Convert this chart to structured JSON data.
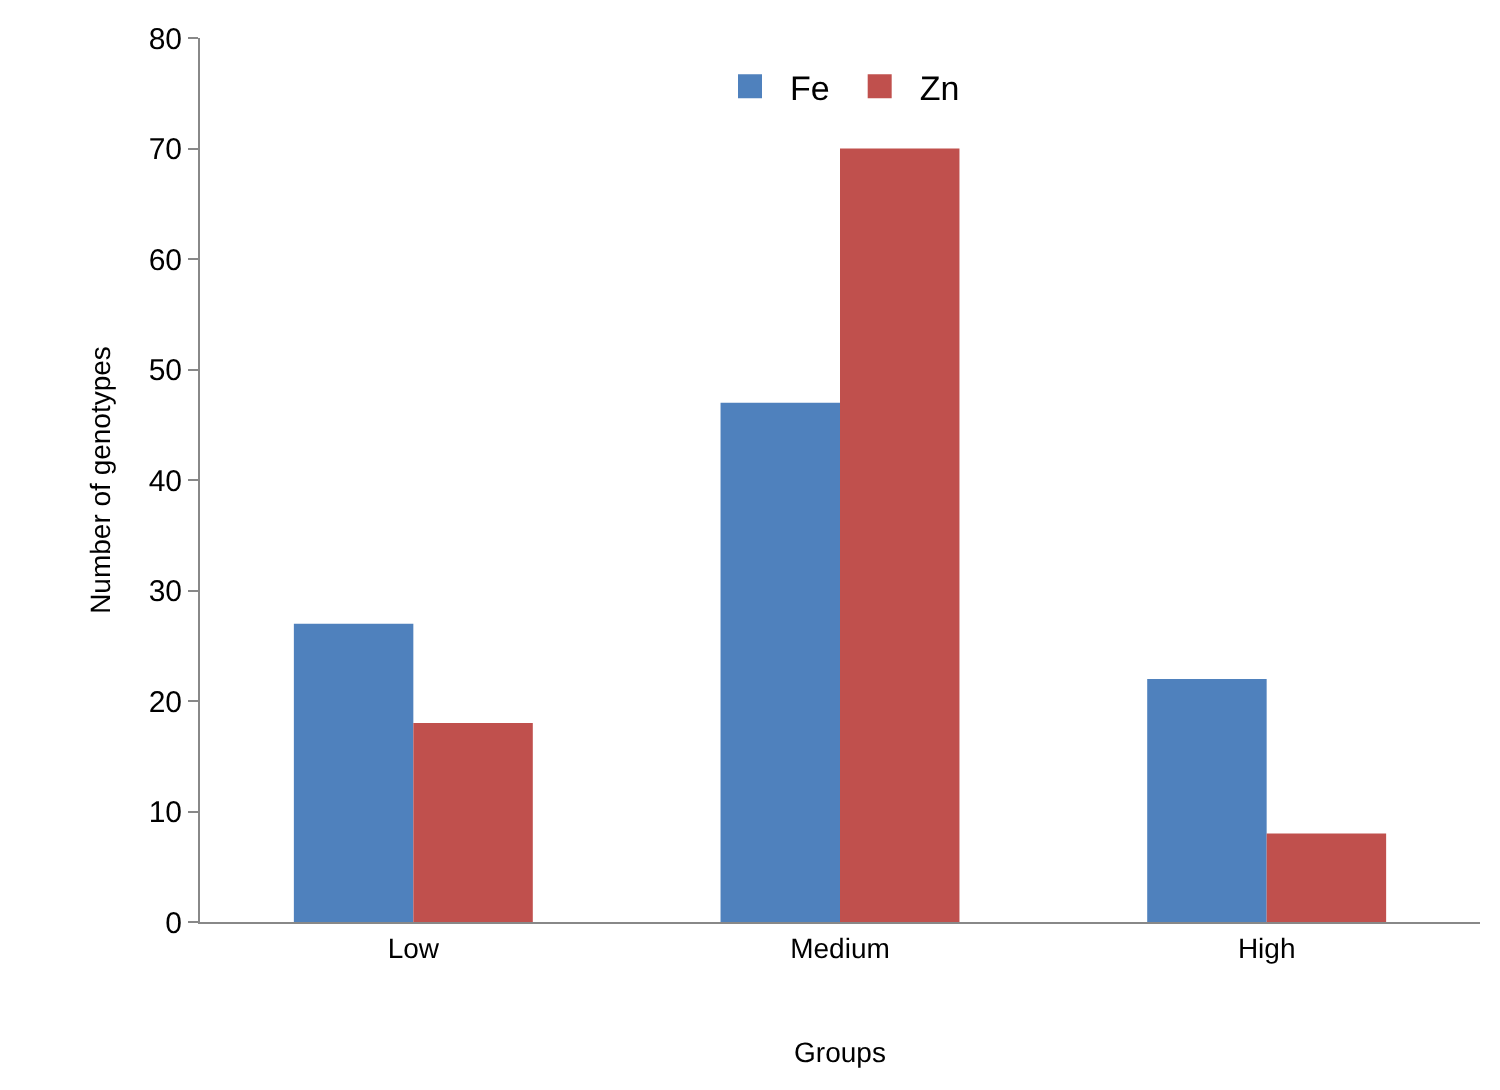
{
  "chart_data": {
    "type": "bar",
    "xlabel": "Groups",
    "ylabel": "Number of genotypes",
    "categories": [
      "Low",
      "Medium",
      "High"
    ],
    "series": [
      {
        "name": "Fe",
        "color": "#4f81bd",
        "values": [
          27,
          47,
          22
        ]
      },
      {
        "name": "Zn",
        "color": "#c0504d",
        "values": [
          18,
          70,
          8
        ]
      }
    ],
    "ylim": [
      0,
      80
    ],
    "yticks": [
      0,
      10,
      20,
      30,
      40,
      50,
      60,
      70,
      80
    ],
    "legend": "top"
  }
}
